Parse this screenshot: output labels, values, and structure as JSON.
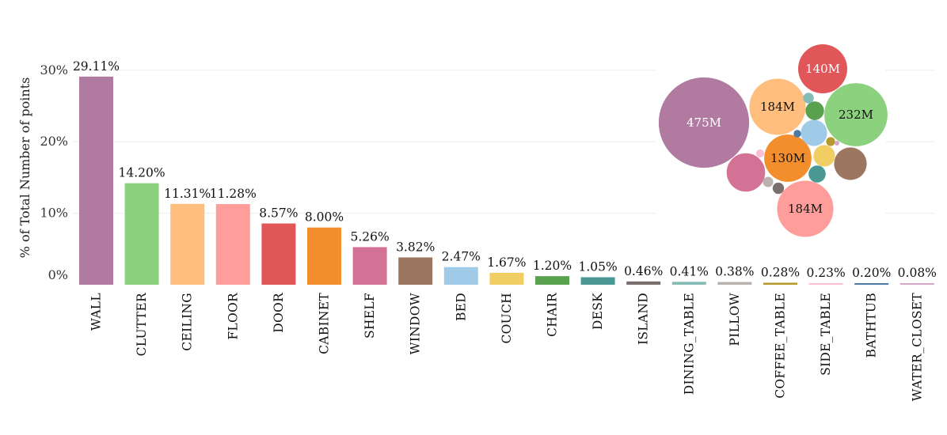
{
  "chart_data": [
    {
      "type": "bar",
      "ylabel": "% of Total Number of points",
      "yticks": [
        "0%",
        "10%",
        "20%",
        "30%"
      ],
      "ylim": [
        0,
        32
      ],
      "grid": true,
      "categories": [
        "WALL",
        "CLUTTER",
        "CEILING",
        "FLOOR",
        "DOOR",
        "CABINET",
        "SHELF",
        "WINDOW",
        "BED",
        "COUCH",
        "CHAIR",
        "DESK",
        "ISLAND",
        "DINING_TABLE",
        "PILLOW",
        "COFFEE_TABLE",
        "SIDE_TABLE",
        "BATHTUB",
        "WATER_CLOSET"
      ],
      "values": [
        29.11,
        14.2,
        11.31,
        11.28,
        8.57,
        8.0,
        5.26,
        3.82,
        2.47,
        1.67,
        1.2,
        1.05,
        0.46,
        0.41,
        0.38,
        0.28,
        0.23,
        0.2,
        0.08
      ],
      "value_labels": [
        "29.11%",
        "14.20%",
        "11.31%",
        "11.28%",
        "8.57%",
        "8.00%",
        "5.26%",
        "3.82%",
        "2.47%",
        "1.67%",
        "1.20%",
        "1.05%",
        "0.46%",
        "0.41%",
        "0.38%",
        "0.28%",
        "0.23%",
        "0.20%",
        "0.08%"
      ],
      "colors": [
        "#b07aa1",
        "#8cd17d",
        "#ffbe7d",
        "#ff9d9a",
        "#e15759",
        "#f28e2b",
        "#d37295",
        "#9d7660",
        "#a0cbe8",
        "#f1ce63",
        "#59a14f",
        "#499894",
        "#79706e",
        "#86bcb6",
        "#bab0ac",
        "#b6992d",
        "#fabfd2",
        "#4e79a7",
        "#d4a6c8"
      ]
    },
    {
      "type": "bubble",
      "legend": "top-right",
      "bubbles": [
        {
          "category": "WALL",
          "value": 475,
          "label": "475M",
          "color": "#b07aa1",
          "text_color": "#ffffff"
        },
        {
          "category": "CLUTTER",
          "value": 232,
          "label": "232M",
          "color": "#8cd17d",
          "text_color": "#111111"
        },
        {
          "category": "CEILING",
          "value": 184,
          "label": "184M",
          "color": "#ffbe7d",
          "text_color": "#111111"
        },
        {
          "category": "FLOOR",
          "value": 184,
          "label": "184M",
          "color": "#ff9d9a",
          "text_color": "#111111"
        },
        {
          "category": "DOOR",
          "value": 140,
          "label": "140M",
          "color": "#e15759",
          "text_color": "#ffffff"
        },
        {
          "category": "CABINET",
          "value": 130,
          "label": "130M",
          "color": "#f28e2b",
          "text_color": "#111111"
        },
        {
          "category": "SHELF",
          "value": 86,
          "label": "",
          "color": "#d37295"
        },
        {
          "category": "WINDOW",
          "value": 62,
          "label": "",
          "color": "#9d7660"
        },
        {
          "category": "BED",
          "value": 40,
          "label": "",
          "color": "#a0cbe8"
        },
        {
          "category": "COUCH",
          "value": 27,
          "label": "",
          "color": "#f1ce63"
        },
        {
          "category": "CHAIR",
          "value": 20,
          "label": "",
          "color": "#59a14f"
        },
        {
          "category": "DESK",
          "value": 17,
          "label": "",
          "color": "#499894"
        },
        {
          "category": "ISLAND",
          "value": 7.5,
          "label": "",
          "color": "#79706e"
        },
        {
          "category": "DINING_TABLE",
          "value": 6.7,
          "label": "",
          "color": "#86bcb6"
        },
        {
          "category": "PILLOW",
          "value": 6.2,
          "label": "",
          "color": "#bab0ac"
        },
        {
          "category": "COFFEE_TABLE",
          "value": 4.6,
          "label": "",
          "color": "#b6992d"
        },
        {
          "category": "SIDE_TABLE",
          "value": 3.8,
          "label": "",
          "color": "#fabfd2"
        },
        {
          "category": "BATHTUB",
          "value": 3.3,
          "label": "",
          "color": "#4e79a7"
        },
        {
          "category": "WATER_CLOSET",
          "value": 1.3,
          "label": "",
          "color": "#d4a6c8"
        }
      ]
    }
  ]
}
